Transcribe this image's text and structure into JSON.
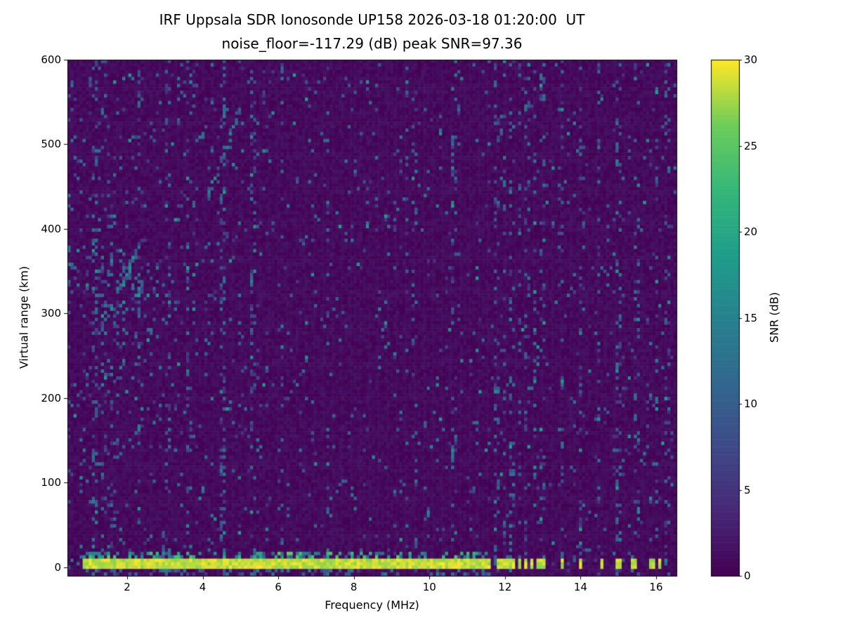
{
  "chart_data": {
    "type": "heatmap",
    "title": "IRF Uppsala SDR Ionosonde UP158 2026-03-18 01:20:00  UT",
    "subtitle": "noise_floor=-117.29 (dB) peak SNR=97.36",
    "xlabel": "Frequency (MHz)",
    "ylabel": "Virtual range (km)",
    "xlim": [
      0.42,
      16.54
    ],
    "ylim": [
      -10,
      600
    ],
    "x_ticks": [
      2,
      4,
      6,
      8,
      10,
      12,
      14,
      16
    ],
    "y_ticks": [
      0,
      100,
      200,
      300,
      400,
      500,
      600
    ],
    "grid": false,
    "colorbar": {
      "label": "SNR (dB)",
      "ticks": [
        0,
        5,
        10,
        15,
        20,
        25,
        30
      ],
      "min": 0,
      "max": 30,
      "colormap": "viridis"
    },
    "noise_floor_db": -117.29,
    "peak_snr_db": 97.36,
    "background_snr_db": [
      0,
      2
    ],
    "ground_pulse": {
      "freq_start": 0.85,
      "freq_end": 11.65,
      "range_min": -2.5,
      "range_max": 11,
      "snr": 30
    },
    "discrete_bars_mhz": [
      11.8,
      11.95,
      12.1,
      12.25,
      12.4,
      12.55,
      12.7,
      12.85,
      13.0,
      13.5,
      14.0,
      14.55,
      15.0,
      15.4,
      15.9,
      16.1
    ],
    "rfi_stripes_mhz": [
      1.15,
      2.3,
      3.05,
      4.55,
      5.3,
      6.1,
      7.3,
      9.4,
      10.6,
      11.8,
      12.0,
      12.2,
      12.4,
      12.6,
      12.8,
      13.0,
      13.5,
      14.0,
      14.5,
      15.0,
      15.5,
      16.0,
      16.3
    ],
    "hot_columns_mhz": [
      1.35,
      1.6,
      3.1,
      3.6,
      4.55,
      5.35,
      9.6,
      10.7
    ],
    "noise_cluster": {
      "freq": [
        1.0,
        2.8
      ],
      "range": [
        260,
        390
      ]
    },
    "diagonal_traces": [
      {
        "f0": 1.3,
        "r0": 285,
        "f1": 2.3,
        "r1": 375
      },
      {
        "f0": 4.1,
        "r0": 430,
        "f1": 5.0,
        "r1": 545
      }
    ]
  }
}
